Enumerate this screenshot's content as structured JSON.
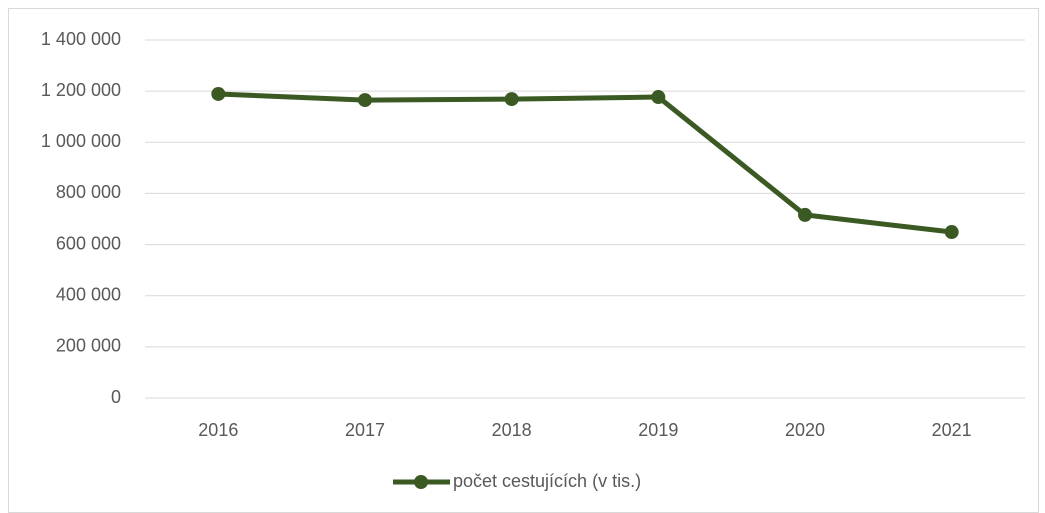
{
  "chart_data": {
    "type": "line",
    "categories": [
      "2016",
      "2017",
      "2018",
      "2019",
      "2020",
      "2021"
    ],
    "series": [
      {
        "name": "počet cestujících (v tis.)",
        "color": "#3b5a23",
        "values": [
          1189000,
          1165000,
          1169000,
          1177000,
          716000,
          649000
        ]
      }
    ],
    "ylim": [
      0,
      1400000
    ],
    "yticks": [
      0,
      {
        "value": 200000,
        "label": "200 000"
      },
      {
        "value": 400000,
        "label": "400 000"
      },
      {
        "value": 600000,
        "label": "600 000"
      },
      {
        "value": 800000,
        "label": "800 000"
      },
      {
        "value": 1000000,
        "label": "1 000 000"
      },
      {
        "value": 1200000,
        "label": "1 200 000"
      },
      {
        "value": 1400000,
        "label": "1 400 000"
      }
    ],
    "grid": true,
    "legend": "bottom"
  }
}
